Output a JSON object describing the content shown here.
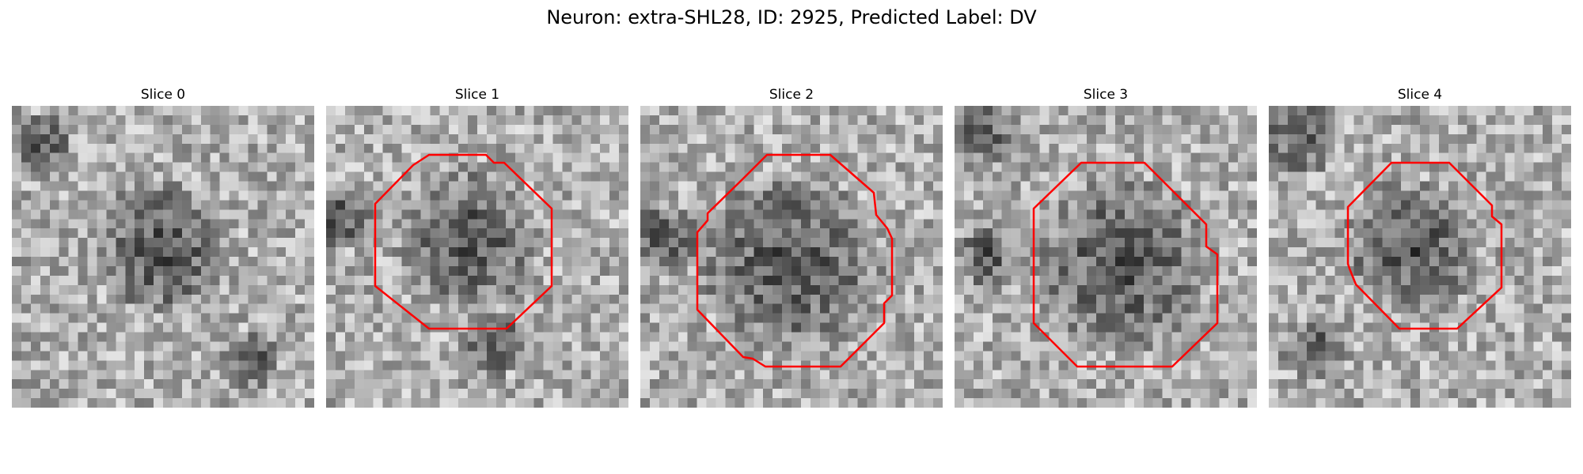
{
  "figure": {
    "title": "Neuron: extra-SHL28, ID: 2925, Predicted Label: DV"
  },
  "panels": [
    {
      "title": "Slice 0",
      "has_contour": false,
      "seed": 11
    },
    {
      "title": "Slice 1",
      "has_contour": true,
      "seed": 23
    },
    {
      "title": "Slice 2",
      "has_contour": true,
      "seed": 37
    },
    {
      "title": "Slice 3",
      "has_contour": true,
      "seed": 53
    },
    {
      "title": "Slice 4",
      "has_contour": true,
      "seed": 71
    }
  ],
  "colors": {
    "contour": "#ff0000",
    "background": "#ffffff"
  },
  "colormap": "grayscale"
}
